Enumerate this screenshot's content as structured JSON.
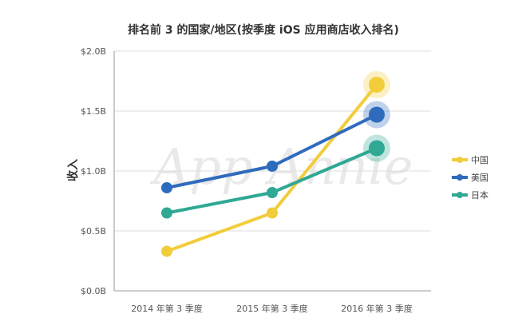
{
  "chart_data": {
    "type": "line",
    "title": "排名前 3 的国家/地区(按季度 iOS 应用商店收入排名)",
    "ylabel": "收入",
    "categories": [
      "2014 年第 3 季度",
      "2015 年第 3 季度",
      "2016 年第 3 季度"
    ],
    "y_ticks": [
      "$0.0B",
      "$0.5B",
      "$1.0B",
      "$1.5B",
      "$2.0B"
    ],
    "ylim": [
      0,
      2.0
    ],
    "grid": true,
    "legend_position": "right",
    "watermark": "App Annie",
    "series": [
      {
        "name": "中国",
        "color": "#f2cd3b",
        "values": [
          0.33,
          0.65,
          1.72
        ]
      },
      {
        "name": "美国",
        "color": "#2f6bbd",
        "values": [
          0.86,
          1.04,
          1.47
        ]
      },
      {
        "name": "日本",
        "color": "#2fa894",
        "values": [
          0.65,
          0.82,
          1.19
        ]
      }
    ]
  }
}
